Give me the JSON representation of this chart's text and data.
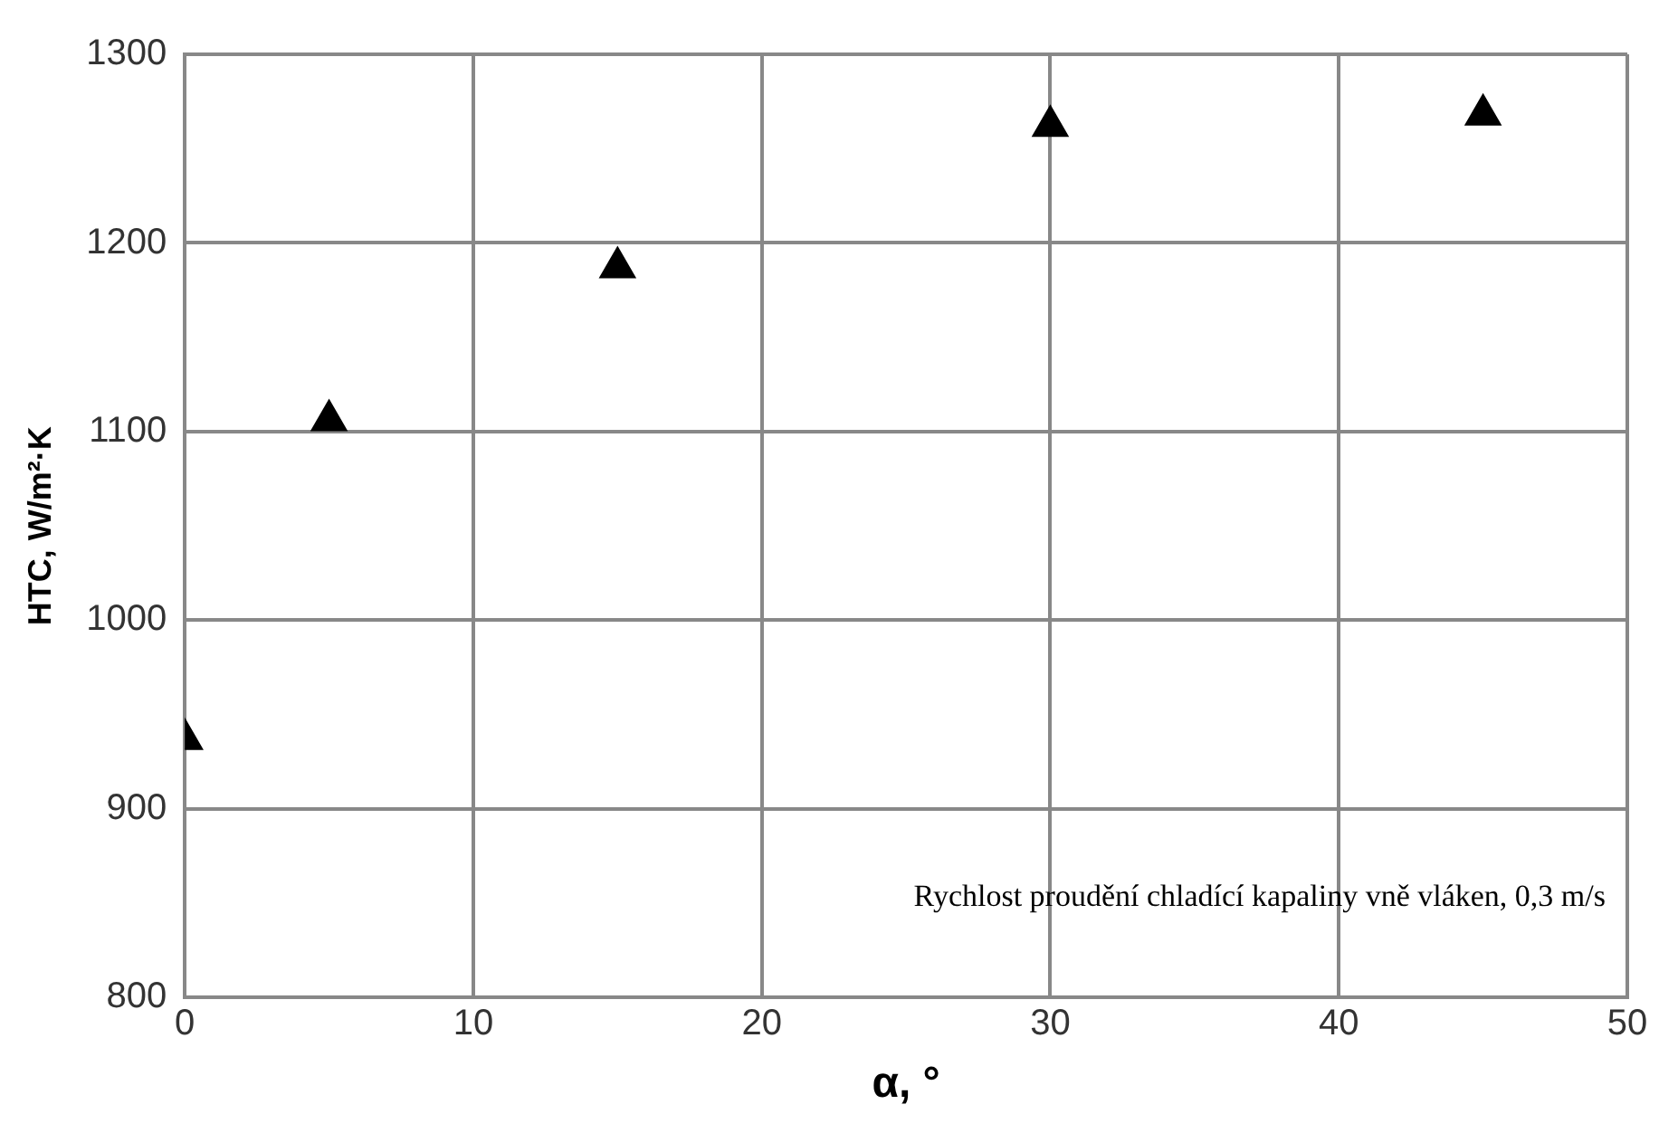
{
  "chart_data": {
    "type": "scatter",
    "xlabel": "α, °",
    "ylabel": "HTC, W/m²·K",
    "x": [
      0,
      5,
      15,
      30,
      45
    ],
    "series": [
      {
        "color": "#000000",
        "values": [
          937,
          1106,
          1187,
          1262,
          1268
        ]
      }
    ],
    "xlim": [
      0,
      50
    ],
    "xticks": [
      0,
      10,
      20,
      30,
      40,
      50
    ],
    "ylim": [
      800,
      1300
    ],
    "yticks": [
      800,
      900,
      1000,
      1100,
      1200,
      1300
    ],
    "grid": true,
    "legend": false,
    "marker": "triangle",
    "annotations": [
      "Rychlost proudění chladící kapaliny vně vláken, 0,3 m/s"
    ]
  }
}
